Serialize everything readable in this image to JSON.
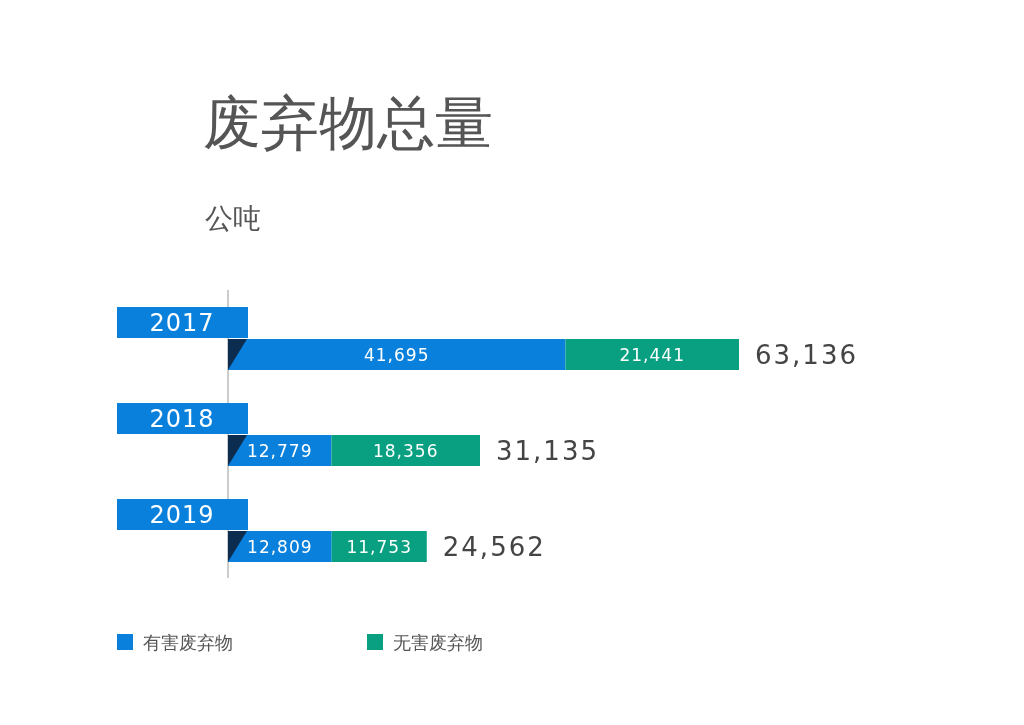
{
  "chart_data": {
    "type": "bar",
    "orientation": "horizontal",
    "stacked": true,
    "title": "废弃物总量",
    "subtitle": "公吨",
    "categories": [
      "2017",
      "2018",
      "2019"
    ],
    "series": [
      {
        "name": "有害废弃物",
        "color": "#0a80dd",
        "values": [
          41695,
          12779,
          12809
        ],
        "value_labels": [
          "41,695",
          "12,779",
          "12,809"
        ]
      },
      {
        "name": "无害废弃物",
        "color": "#08a080",
        "values": [
          21441,
          18356,
          11753
        ],
        "value_labels": [
          "21,441",
          "18,356",
          "11,753"
        ]
      }
    ],
    "totals": [
      "63,136",
      "31,135",
      "24,562"
    ],
    "legend": "bottom"
  }
}
